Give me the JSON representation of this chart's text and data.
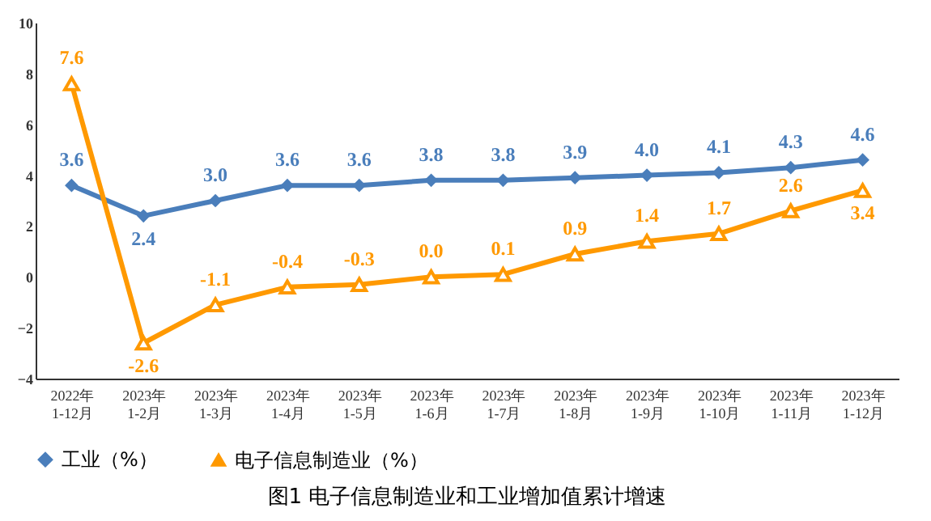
{
  "chart_data": {
    "type": "line",
    "title": "图1  电子信息制造业和工业增加值累计增速",
    "categories": [
      "2022年\n1-12月",
      "2023年\n1-2月",
      "2023年\n1-3月",
      "2023年\n1-4月",
      "2023年\n1-5月",
      "2023年\n1-6月",
      "2023年\n1-7月",
      "2023年\n1-8月",
      "2023年\n1-9月",
      "2023年\n1-10月",
      "2023年\n1-11月",
      "2023年\n1-12月"
    ],
    "series": [
      {
        "name": "工业（%）",
        "color": "#4a7ebb",
        "marker": "diamond",
        "values": [
          3.6,
          2.4,
          3.0,
          3.6,
          3.6,
          3.8,
          3.8,
          3.9,
          4.0,
          4.1,
          4.3,
          4.6
        ],
        "value_labels": [
          "3.6",
          "2.4",
          "3.0",
          "3.6",
          "3.6",
          "3.8",
          "3.8",
          "3.9",
          "4.0",
          "4.1",
          "4.3",
          "4.6"
        ]
      },
      {
        "name": "电子信息制造业（%）",
        "color": "#ff9900",
        "marker": "triangle",
        "values": [
          7.6,
          -2.6,
          -1.1,
          -0.4,
          -0.3,
          0.0,
          0.1,
          0.9,
          1.4,
          1.7,
          2.6,
          3.4
        ],
        "value_labels": [
          "7.6",
          "-2.6",
          "-1.1",
          "-0.4",
          "-0.3",
          "0.0",
          "0.1",
          "0.9",
          "1.4",
          "1.7",
          "2.6",
          "3.4"
        ]
      }
    ],
    "ylim": [
      -4,
      10
    ],
    "yticks": [
      -4,
      -2,
      0,
      2,
      4,
      6,
      8,
      10
    ],
    "grid": false,
    "legend": "bottom",
    "line_style": "solid"
  }
}
